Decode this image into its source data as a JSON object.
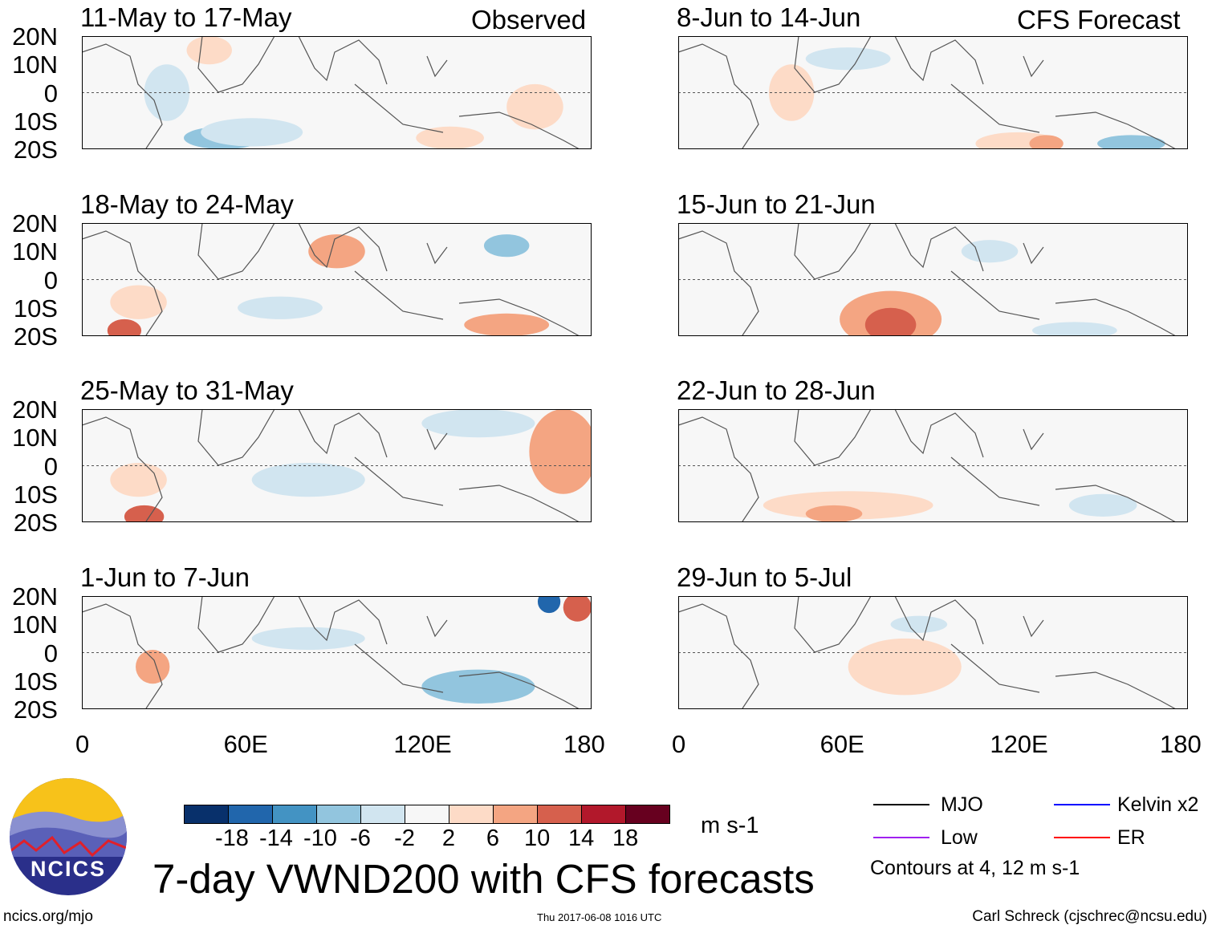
{
  "figure_title": "7-day VWND200 with CFS forecasts",
  "logo_text": "NCICS",
  "site": "ncics.org/mjo",
  "timestamp": "Thu 2017-06-08 1016 UTC",
  "author": "Carl Schreck (cjschrec@ncsu.edu)",
  "column_labels": {
    "observed": "Observed",
    "forecast": "CFS Forecast"
  },
  "panels": [
    {
      "title": "11-May to 17-May",
      "column": "observed"
    },
    {
      "title": "18-May to 24-May",
      "column": "observed"
    },
    {
      "title": "25-May to 31-May",
      "column": "observed"
    },
    {
      "title": "1-Jun to 7-Jun",
      "column": "observed"
    },
    {
      "title": "8-Jun to 14-Jun",
      "column": "forecast"
    },
    {
      "title": "15-Jun to 21-Jun",
      "column": "forecast"
    },
    {
      "title": "22-Jun to 28-Jun",
      "column": "forecast"
    },
    {
      "title": "29-Jun to 5-Jul",
      "column": "forecast"
    }
  ],
  "y_ticks": [
    "20N",
    "10N",
    "0",
    "10S",
    "20S"
  ],
  "x_ticks": [
    "0",
    "60E",
    "120E",
    "180"
  ],
  "colorbar": {
    "unit": "m s-1",
    "labels": [
      "-18",
      "-14",
      "-10",
      "-6",
      "-2",
      "2",
      "6",
      "10",
      "14",
      "18"
    ],
    "colors": [
      "#08306b",
      "#2166ac",
      "#4393c3",
      "#92c5de",
      "#d1e5f0",
      "#f7f7f7",
      "#fddbc7",
      "#f4a582",
      "#d6604d",
      "#b2182b",
      "#67001f"
    ]
  },
  "legend": {
    "items": [
      {
        "label": "MJO",
        "color": "#000000"
      },
      {
        "label": "Kelvin x2",
        "color": "#0000ff"
      },
      {
        "label": "Low",
        "color": "#a020f0"
      },
      {
        "label": "ER",
        "color": "#ff0000"
      }
    ],
    "note": "Contours at 4, 12 m s-1"
  }
}
